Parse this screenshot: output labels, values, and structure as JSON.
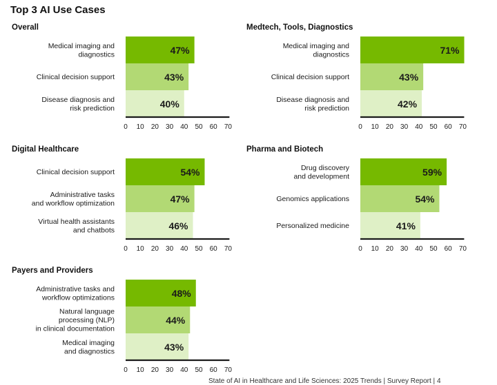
{
  "page": {
    "title": "Top 3 AI Use Cases",
    "footer": "State of AI in Healthcare and Life Sciences: 2025 Trends  |  Survey Report  |  4"
  },
  "colors": {
    "bar_rank1": "#76b900",
    "bar_rank2": "#b2d974",
    "bar_rank3": "#dff0c6",
    "axis": "#1a1a1a",
    "text": "#1a1a1a"
  },
  "chart_data": [
    {
      "type": "bar",
      "orientation": "horizontal",
      "title": "Overall",
      "categories": [
        "Medical imaging and\ndiagnostics",
        "Clinical decision support",
        "Disease diagnosis and\nrisk prediction"
      ],
      "values": [
        47,
        43,
        40
      ],
      "labels": [
        "47%",
        "43%",
        "40%"
      ],
      "xlim": [
        0,
        70
      ],
      "xticks": [
        "0",
        "10",
        "20",
        "30",
        "40",
        "50",
        "60",
        "70"
      ]
    },
    {
      "type": "bar",
      "orientation": "horizontal",
      "title": "Medtech, Tools, Diagnostics",
      "categories": [
        "Medical imaging and\ndiagnostics",
        "Clinical decision support",
        "Disease diagnosis and\nrisk prediction"
      ],
      "values": [
        71,
        43,
        42
      ],
      "labels": [
        "71%",
        "43%",
        "42%"
      ],
      "xlim": [
        0,
        70
      ],
      "xticks": [
        "0",
        "10",
        "20",
        "30",
        "40",
        "50",
        "60",
        "70"
      ]
    },
    {
      "type": "bar",
      "orientation": "horizontal",
      "title": "Digital Healthcare",
      "categories": [
        "Clinical decision support",
        "Administrative tasks\nand workflow optimization",
        "Virtual health assistants\nand chatbots"
      ],
      "values": [
        54,
        47,
        46
      ],
      "labels": [
        "54%",
        "47%",
        "46%"
      ],
      "xlim": [
        0,
        70
      ],
      "xticks": [
        "0",
        "10",
        "20",
        "30",
        "40",
        "50",
        "60",
        "70"
      ]
    },
    {
      "type": "bar",
      "orientation": "horizontal",
      "title": "Pharma and Biotech",
      "categories": [
        "Drug discovery\nand development",
        "Genomics applications",
        "Personalized medicine"
      ],
      "values": [
        59,
        54,
        41
      ],
      "labels": [
        "59%",
        "54%",
        "41%"
      ],
      "xlim": [
        0,
        70
      ],
      "xticks": [
        "0",
        "10",
        "20",
        "30",
        "40",
        "50",
        "60",
        "70"
      ]
    },
    {
      "type": "bar",
      "orientation": "horizontal",
      "title": "Payers and Providers",
      "categories": [
        "Administrative tasks and\nworkflow optimizations",
        "Natural language\nprocessing (NLP)\nin clinical documentation",
        "Medical imaging\nand diagnostics"
      ],
      "values": [
        48,
        44,
        43
      ],
      "labels": [
        "48%",
        "44%",
        "43%"
      ],
      "xlim": [
        0,
        70
      ],
      "xticks": [
        "0",
        "10",
        "20",
        "30",
        "40",
        "50",
        "60",
        "70"
      ]
    }
  ]
}
